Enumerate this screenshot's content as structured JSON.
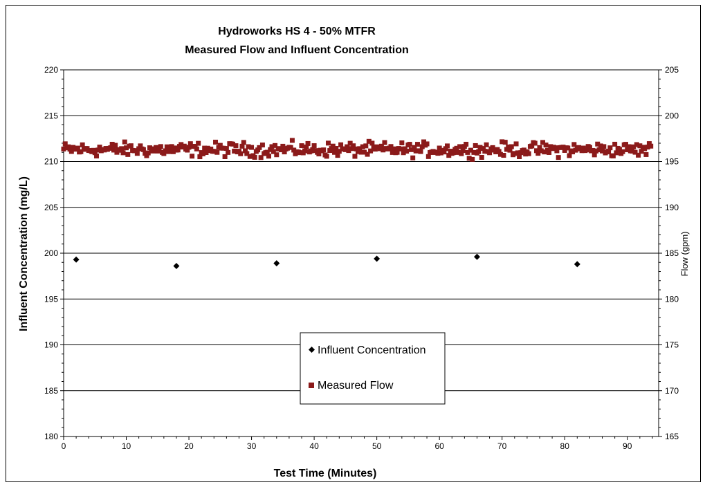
{
  "chart_data": {
    "type": "scatter",
    "title_line1": "Hydroworks HS 4 - 50% MTFR",
    "title_line2": "Measured Flow and Influent Concentration",
    "xlabel": "Test Time (Minutes)",
    "ylabel": "Influent Concentration (mg/L)",
    "y2label": "Flow (gpm)",
    "xlim": [
      0,
      95
    ],
    "ylim": [
      180,
      220
    ],
    "y2lim": [
      165,
      205
    ],
    "xticks": [
      0,
      10,
      20,
      30,
      40,
      50,
      60,
      70,
      80,
      90
    ],
    "yticks": [
      180,
      185,
      190,
      195,
      200,
      205,
      210,
      215,
      220
    ],
    "y2ticks": [
      165,
      170,
      175,
      180,
      185,
      190,
      195,
      200,
      205
    ],
    "grid": "horizontal",
    "legend_position": "lower-center",
    "series": [
      {
        "name": "Influent Concentration",
        "axis": "left",
        "marker": "diamond",
        "color": "#000000",
        "x": [
          2,
          18,
          34,
          50,
          66,
          82
        ],
        "y": [
          199.3,
          198.6,
          198.9,
          199.4,
          199.6,
          198.8
        ]
      },
      {
        "name": "Measured Flow",
        "axis": "right",
        "marker": "square",
        "color": "#8B1A1A",
        "x_start": 0,
        "x_step": 0.25,
        "count": 377,
        "mean": 196.3,
        "y_min": 194.6,
        "y_max": 197.4
      }
    ]
  }
}
